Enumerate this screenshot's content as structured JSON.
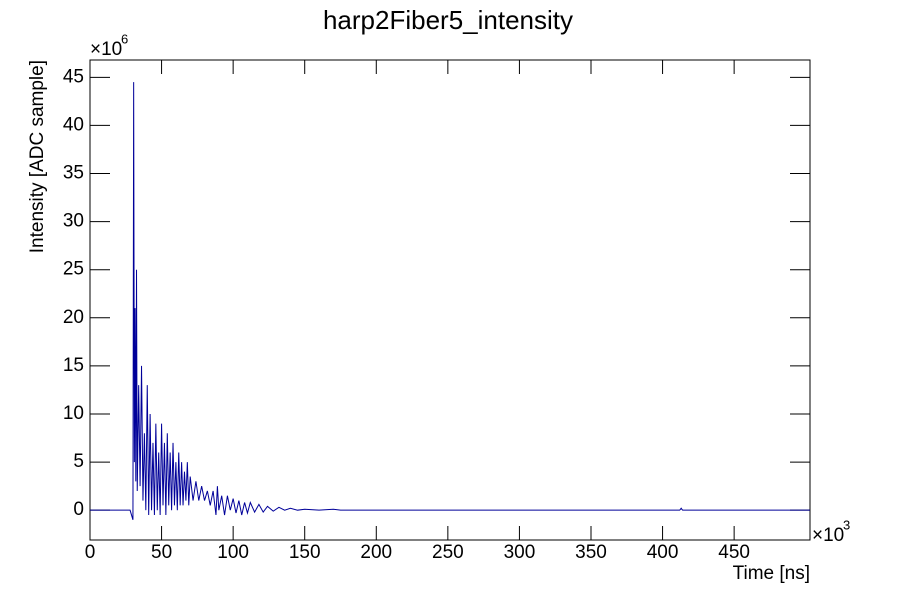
{
  "chart_data": {
    "type": "line",
    "title": "harp2Fiber5_intensity",
    "x_label": "Time [ns]",
    "y_label": "Intensity [ADC sample]",
    "x_scale_label": {
      "base": "×10",
      "exponent": "3"
    },
    "y_scale_label": {
      "base": "×10",
      "exponent": "6"
    },
    "xlim": [
      0,
      503
    ],
    "ylim": [
      -3.1,
      46.8
    ],
    "xticks": [
      0,
      50,
      100,
      150,
      200,
      250,
      300,
      350,
      400,
      450
    ],
    "yticks": [
      0,
      5,
      10,
      15,
      20,
      25,
      30,
      35,
      40,
      45
    ],
    "x": [
      0,
      28,
      30,
      30.5,
      31,
      31.5,
      32,
      32.5,
      33,
      34,
      35,
      36,
      37,
      38,
      39,
      40,
      41,
      42,
      43,
      44,
      45,
      46,
      47,
      48,
      49,
      50,
      51,
      52,
      53,
      54,
      55,
      56,
      57,
      58,
      59,
      60,
      61,
      62,
      63,
      64,
      65,
      66,
      67,
      68,
      69,
      70,
      72,
      74,
      76,
      78,
      80,
      82,
      84,
      86,
      88,
      89,
      90,
      92,
      94,
      96,
      98,
      100,
      102,
      104,
      106,
      108,
      110,
      112,
      115,
      118,
      121,
      124,
      128,
      132,
      136,
      140,
      145,
      150,
      160,
      170,
      175,
      412,
      413,
      414,
      503
    ],
    "series": [
      {
        "color": "#000099",
        "values": [
          0,
          0,
          -1,
          44.5,
          5,
          21,
          3,
          25,
          2,
          13,
          2.5,
          15,
          1,
          8,
          0,
          13,
          -0.5,
          10,
          0,
          7,
          -0.5,
          9,
          0,
          6,
          -0.5,
          9,
          0.5,
          7,
          -0.5,
          8,
          0.5,
          6,
          0,
          7,
          0.5,
          5,
          0,
          6,
          0.5,
          5,
          0.5,
          4,
          1,
          5,
          0.5,
          3.5,
          1,
          3,
          1,
          2.5,
          1,
          2,
          0.5,
          2,
          -0.5,
          2.5,
          0,
          1.5,
          -0.5,
          1.5,
          0,
          1.2,
          -0.3,
          1,
          -0.5,
          0.8,
          -0.3,
          0.8,
          -0.2,
          0.6,
          -0.2,
          0.4,
          -0.1,
          0.3,
          0,
          0.2,
          0,
          0.1,
          0,
          0.1,
          0,
          0,
          0.2,
          0,
          0
        ]
      }
    ]
  }
}
